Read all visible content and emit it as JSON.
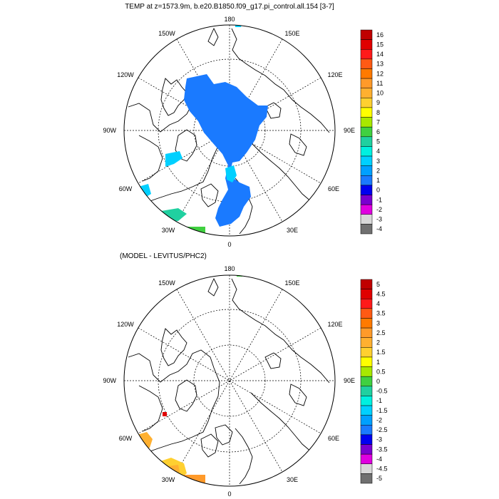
{
  "panels": [
    {
      "title": "TEMP at z=1573.9m, b.e20.B1850.f09_g17.pi_control.all.154 [3-7]",
      "lon_labels": {
        "top": "180",
        "bottom": "0",
        "left": "90W",
        "right": "90E",
        "upper_left": "150W",
        "upper_left2": "120W",
        "upper_right": "150E",
        "upper_right2": "120E",
        "lower_left": "60W",
        "lower_left2": "30W",
        "lower_right": "60E",
        "lower_right2": "30E"
      },
      "colorbar": {
        "labels": [
          "16",
          "15",
          "14",
          "13",
          "12",
          "11",
          "10",
          "9",
          "8",
          "7",
          "6",
          "5",
          "4",
          "3",
          "2",
          "1",
          "0",
          "-1",
          "-2",
          "-3",
          "-4"
        ],
        "colors": [
          "#c00000",
          "#e00000",
          "#ff1a1a",
          "#ff5a14",
          "#ff7a00",
          "#ff9a2a",
          "#ffb030",
          "#ffd030",
          "#ffff00",
          "#a8e800",
          "#40d040",
          "#20d0a0",
          "#00f0e0",
          "#00d0ff",
          "#00a0ff",
          "#1a7aff",
          "#0000f0",
          "#7a00d0",
          "#e000e0",
          "#d8d8d8",
          "#707070"
        ]
      }
    },
    {
      "title": "(MODEL - LEVITUS/PHC2)",
      "lon_labels": {
        "top": "180",
        "bottom": "0",
        "left": "90W",
        "right": "90E",
        "upper_left": "150W",
        "upper_left2": "120W",
        "upper_right": "150E",
        "upper_right2": "120E",
        "lower_left": "60W",
        "lower_left2": "30W",
        "lower_right": "60E",
        "lower_right2": "30E"
      },
      "colorbar": {
        "labels": [
          "5",
          "4.5",
          "4",
          "3.5",
          "3",
          "2.5",
          "2",
          "1.5",
          "1",
          "0.5",
          "0",
          "-0.5",
          "-1",
          "-1.5",
          "-2",
          "-2.5",
          "-3",
          "-3.5",
          "-4",
          "-4.5",
          "-5"
        ],
        "colors": [
          "#c00000",
          "#e00000",
          "#ff1a1a",
          "#ff5a14",
          "#ff7a00",
          "#ff9a2a",
          "#ffb030",
          "#ffd030",
          "#ffff00",
          "#a8e800",
          "#40d040",
          "#20d0a0",
          "#00f0e0",
          "#00d0ff",
          "#00a0ff",
          "#1a7aff",
          "#0000f0",
          "#7a00d0",
          "#e000e0",
          "#d8d8d8",
          "#707070"
        ]
      }
    }
  ]
}
